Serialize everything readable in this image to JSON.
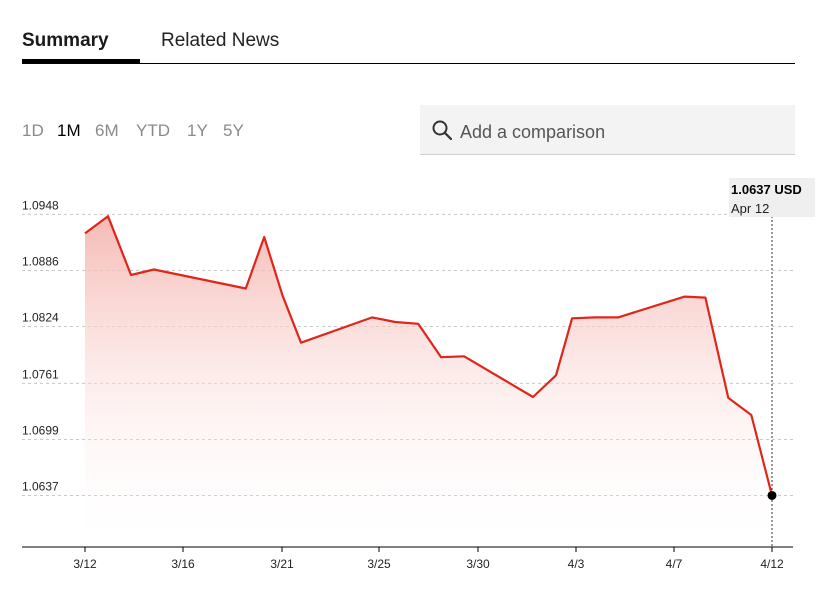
{
  "tabs": [
    {
      "label": "Summary",
      "active": true
    },
    {
      "label": "Related News",
      "active": false
    }
  ],
  "ranges": [
    {
      "label": "1D",
      "active": false
    },
    {
      "label": "1M",
      "active": true
    },
    {
      "label": "6M",
      "active": false
    },
    {
      "label": "YTD",
      "active": false
    },
    {
      "label": "1Y",
      "active": false
    },
    {
      "label": "5Y",
      "active": false
    }
  ],
  "compare": {
    "placeholder": "Add a comparison",
    "icon": "search-icon"
  },
  "tooltip": {
    "value": "1.0637 USD",
    "date": "Apr 12"
  },
  "colors": {
    "line": "#e0261b",
    "fill_top": "#f4b2ac",
    "grid": "#c8c8c8",
    "marker": "#000000"
  },
  "chart_data": {
    "type": "area",
    "title": "",
    "xlabel": "",
    "ylabel": "",
    "grid": true,
    "x_ticks": [
      "3/12",
      "3/16",
      "3/21",
      "3/25",
      "3/30",
      "4/3",
      "4/7",
      "4/12"
    ],
    "y_ticks": [
      "1.0948",
      "1.0886",
      "1.0824",
      "1.0761",
      "1.0699",
      "1.0637"
    ],
    "ylim": [
      1.058,
      1.0975
    ],
    "xlim": [
      -0.13,
      29.2
    ],
    "points": [
      {
        "x": 0,
        "y": 1.0927
      },
      {
        "x": 1,
        "y": 1.0946
      },
      {
        "x": 2,
        "y": 1.0881
      },
      {
        "x": 3,
        "y": 1.0887
      },
      {
        "x": 7.0,
        "y": 1.0866
      },
      {
        "x": 7.8,
        "y": 1.0923
      },
      {
        "x": 8.6,
        "y": 1.0858
      },
      {
        "x": 9.4,
        "y": 1.0806
      },
      {
        "x": 12.5,
        "y": 1.0834
      },
      {
        "x": 13.5,
        "y": 1.0829
      },
      {
        "x": 14.5,
        "y": 1.0827
      },
      {
        "x": 15.5,
        "y": 1.079
      },
      {
        "x": 16.5,
        "y": 1.0791
      },
      {
        "x": 19.5,
        "y": 1.0746
      },
      {
        "x": 20.5,
        "y": 1.077
      },
      {
        "x": 21.2,
        "y": 1.0833
      },
      {
        "x": 22.2,
        "y": 1.0834
      },
      {
        "x": 23.2,
        "y": 1.0834
      },
      {
        "x": 26.1,
        "y": 1.0857
      },
      {
        "x": 27.0,
        "y": 1.0856
      },
      {
        "x": 28.0,
        "y": 1.0745
      },
      {
        "x": 29.0,
        "y": 1.0726
      },
      {
        "x": 29.9,
        "y": 1.0637
      }
    ]
  }
}
